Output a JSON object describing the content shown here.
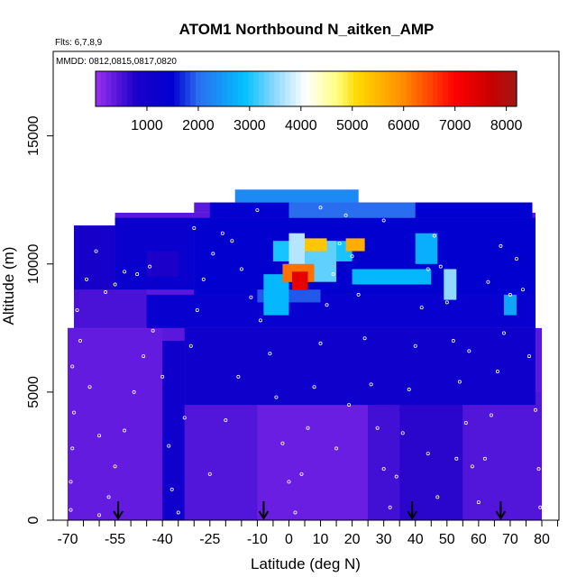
{
  "chart_data": {
    "type": "heatmap",
    "title": "ATOM1 Northbound N_aitken_AMP",
    "annotations": {
      "flights": "Flts: 6,7,8,9",
      "dates": "MMDD: 0812,0815,0817,0820"
    },
    "xlabel": "Latitude (deg N)",
    "ylabel": "Altitude (m)",
    "xlim": [
      -70,
      85
    ],
    "ylim": [
      0,
      17500
    ],
    "x_ticks": [
      -70,
      -55,
      -40,
      -25,
      -10,
      0,
      10,
      20,
      30,
      40,
      50,
      60,
      70,
      80
    ],
    "x_tick_labels": [
      "-70",
      "-55",
      "-40",
      "-25",
      "-10",
      "0",
      "10",
      "20",
      "30",
      "40",
      "50",
      "60",
      "70",
      "80"
    ],
    "x_minor_ticks": [
      -65,
      -60,
      -50,
      -45,
      -35,
      -30,
      -20,
      -15,
      -5,
      5,
      15,
      25,
      35,
      45,
      55,
      65,
      75,
      85
    ],
    "y_ticks": [
      0,
      5000,
      10000,
      15000
    ],
    "y_tick_labels": [
      "0",
      "5000",
      "10000",
      "15000"
    ],
    "colorbar": {
      "range": [
        0,
        8200
      ],
      "ticks": [
        1000,
        2000,
        3000,
        4000,
        5000,
        6000,
        7000,
        8000
      ],
      "tick_labels": [
        "1000",
        "2000",
        "3000",
        "4000",
        "5000",
        "6000",
        "7000",
        "8000"
      ],
      "stops": [
        [
          0,
          "#9a30f0"
        ],
        [
          800,
          "#1a00c8"
        ],
        [
          1500,
          "#0000d0"
        ],
        [
          2000,
          "#2a6ef0"
        ],
        [
          2900,
          "#00c0ff"
        ],
        [
          3500,
          "#90d8ff"
        ],
        [
          4100,
          "#ffffff"
        ],
        [
          4700,
          "#ffff80"
        ],
        [
          5100,
          "#ffd800"
        ],
        [
          6000,
          "#ff8c00"
        ],
        [
          7000,
          "#ff0000"
        ],
        [
          7700,
          "#c80000"
        ],
        [
          8200,
          "#a01818"
        ]
      ]
    },
    "arrow_latitudes": [
      -54,
      -8,
      39,
      67
    ],
    "background_value": 400,
    "regions": [
      {
        "x": [
          -70,
          -40
        ],
        "y": [
          0,
          7500
        ],
        "value": 350
      },
      {
        "x": [
          -40,
          -33
        ],
        "y": [
          0,
          7000
        ],
        "value": 1100
      },
      {
        "x": [
          -33,
          -10
        ],
        "y": [
          0,
          4500
        ],
        "value": 450
      },
      {
        "x": [
          -10,
          25
        ],
        "y": [
          0,
          5000
        ],
        "value": 300
      },
      {
        "x": [
          25,
          35
        ],
        "y": [
          0,
          5000
        ],
        "value": 550
      },
      {
        "x": [
          35,
          55
        ],
        "y": [
          0,
          5500
        ],
        "value": 700
      },
      {
        "x": [
          55,
          80
        ],
        "y": [
          0,
          5000
        ],
        "value": 450
      },
      {
        "x": [
          -33,
          78
        ],
        "y": [
          4500,
          7500
        ],
        "value": 1100
      },
      {
        "x": [
          -68,
          -45
        ],
        "y": [
          7500,
          9000
        ],
        "value": 500
      },
      {
        "x": [
          -45,
          78
        ],
        "y": [
          7500,
          8800
        ],
        "value": 1300
      },
      {
        "x": [
          -68,
          -55
        ],
        "y": [
          9000,
          11500
        ],
        "value": 900
      },
      {
        "x": [
          -55,
          -30
        ],
        "y": [
          9000,
          11800
        ],
        "value": 1250
      },
      {
        "x": [
          -30,
          78
        ],
        "y": [
          8800,
          11800
        ],
        "value": 1450
      },
      {
        "x": [
          -10,
          10
        ],
        "y": [
          8500,
          9000
        ],
        "value": 1900
      },
      {
        "x": [
          -25,
          0
        ],
        "y": [
          11800,
          12400
        ],
        "value": 1400
      },
      {
        "x": [
          0,
          40
        ],
        "y": [
          11800,
          12400
        ],
        "value": 2000
      },
      {
        "x": [
          40,
          77
        ],
        "y": [
          11800,
          12400
        ],
        "value": 1500
      },
      {
        "x": [
          -17,
          22
        ],
        "y": [
          12400,
          12900
        ],
        "value": 2300
      },
      {
        "x": [
          -8,
          0
        ],
        "y": [
          8000,
          9600
        ],
        "value": 2800
      },
      {
        "x": [
          -5,
          20
        ],
        "y": [
          10100,
          10900
        ],
        "value": 3000
      },
      {
        "x": [
          0,
          15
        ],
        "y": [
          9300,
          10900
        ],
        "value": 3300
      },
      {
        "x": [
          20,
          45
        ],
        "y": [
          9200,
          9800
        ],
        "value": 2800
      },
      {
        "x": [
          0,
          5
        ],
        "y": [
          10000,
          11200
        ],
        "value": 3700
      },
      {
        "x": [
          5,
          12
        ],
        "y": [
          10500,
          11000
        ],
        "value": 5300
      },
      {
        "x": [
          -2,
          8
        ],
        "y": [
          9300,
          10000
        ],
        "value": 6200
      },
      {
        "x": [
          1,
          6
        ],
        "y": [
          9000,
          9700
        ],
        "value": 7300
      },
      {
        "x": [
          18,
          24
        ],
        "y": [
          10500,
          11000
        ],
        "value": 5600
      },
      {
        "x": [
          49,
          53
        ],
        "y": [
          8600,
          9800
        ],
        "value": 3500
      },
      {
        "x": [
          68,
          72
        ],
        "y": [
          8000,
          8800
        ],
        "value": 2600
      },
      {
        "x": [
          40,
          47
        ],
        "y": [
          10000,
          11200
        ],
        "value": 2700
      },
      {
        "x": [
          -45,
          -35
        ],
        "y": [
          9500,
          10500
        ],
        "value": 800
      }
    ],
    "sample_points": [
      [
        -69,
        400
      ],
      [
        -69,
        1500
      ],
      [
        -68.5,
        2800
      ],
      [
        -68,
        4200
      ],
      [
        -68.5,
        6000
      ],
      [
        -67,
        8200
      ],
      [
        -64,
        9400
      ],
      [
        -61,
        10500
      ],
      [
        -58,
        8900
      ],
      [
        -55,
        9200
      ],
      [
        -52,
        9700
      ],
      [
        -48,
        9600
      ],
      [
        -44,
        9900
      ],
      [
        -60,
        200
      ],
      [
        -57,
        900
      ],
      [
        -55,
        2100
      ],
      [
        -52,
        3500
      ],
      [
        -49,
        5000
      ],
      [
        -46,
        6400
      ],
      [
        -43,
        7400
      ],
      [
        -40,
        5600
      ],
      [
        -38,
        2900
      ],
      [
        -37,
        1200
      ],
      [
        -35,
        300
      ],
      [
        -33,
        4000
      ],
      [
        -31,
        6800
      ],
      [
        -29,
        8200
      ],
      [
        -27,
        9400
      ],
      [
        -24,
        10400
      ],
      [
        -21,
        11200
      ],
      [
        -18,
        10900
      ],
      [
        -15,
        9800
      ],
      [
        -12,
        8700
      ],
      [
        -9,
        7800
      ],
      [
        -6,
        6500
      ],
      [
        -4,
        4800
      ],
      [
        -2,
        3000
      ],
      [
        0,
        1500
      ],
      [
        2,
        300
      ],
      [
        4,
        1800
      ],
      [
        6,
        3600
      ],
      [
        8,
        5200
      ],
      [
        10,
        6900
      ],
      [
        12,
        8400
      ],
      [
        14,
        9600
      ],
      [
        16,
        10800
      ],
      [
        18,
        11900
      ],
      [
        20,
        10300
      ],
      [
        22,
        8800
      ],
      [
        24,
        7100
      ],
      [
        26,
        5300
      ],
      [
        28,
        3600
      ],
      [
        30,
        2000
      ],
      [
        32,
        500
      ],
      [
        34,
        1700
      ],
      [
        36,
        3400
      ],
      [
        38,
        5100
      ],
      [
        40,
        6800
      ],
      [
        42,
        8300
      ],
      [
        44,
        9800
      ],
      [
        46,
        11100
      ],
      [
        48,
        9900
      ],
      [
        50,
        8500
      ],
      [
        52,
        7000
      ],
      [
        54,
        5400
      ],
      [
        56,
        3800
      ],
      [
        58,
        2100
      ],
      [
        60,
        700
      ],
      [
        62,
        2400
      ],
      [
        64,
        4100
      ],
      [
        66,
        5800
      ],
      [
        68,
        7300
      ],
      [
        70,
        8800
      ],
      [
        72,
        10200
      ],
      [
        74,
        9000
      ],
      [
        76,
        6400
      ],
      [
        78,
        4300
      ],
      [
        79,
        2000
      ],
      [
        79.5,
        500
      ],
      [
        -66,
        7000
      ],
      [
        -63,
        5200
      ],
      [
        -60,
        3300
      ],
      [
        -25,
        1800
      ],
      [
        -20,
        3900
      ],
      [
        -16,
        5600
      ],
      [
        15,
        2800
      ],
      [
        19,
        4500
      ],
      [
        44,
        2600
      ],
      [
        47,
        900
      ],
      [
        53,
        2400
      ],
      [
        57,
        6600
      ],
      [
        63,
        9300
      ],
      [
        67,
        10700
      ],
      [
        -30,
        11400
      ],
      [
        -10,
        12100
      ],
      [
        10,
        12200
      ],
      [
        30,
        11700
      ],
      [
        45,
        12800
      ]
    ]
  }
}
